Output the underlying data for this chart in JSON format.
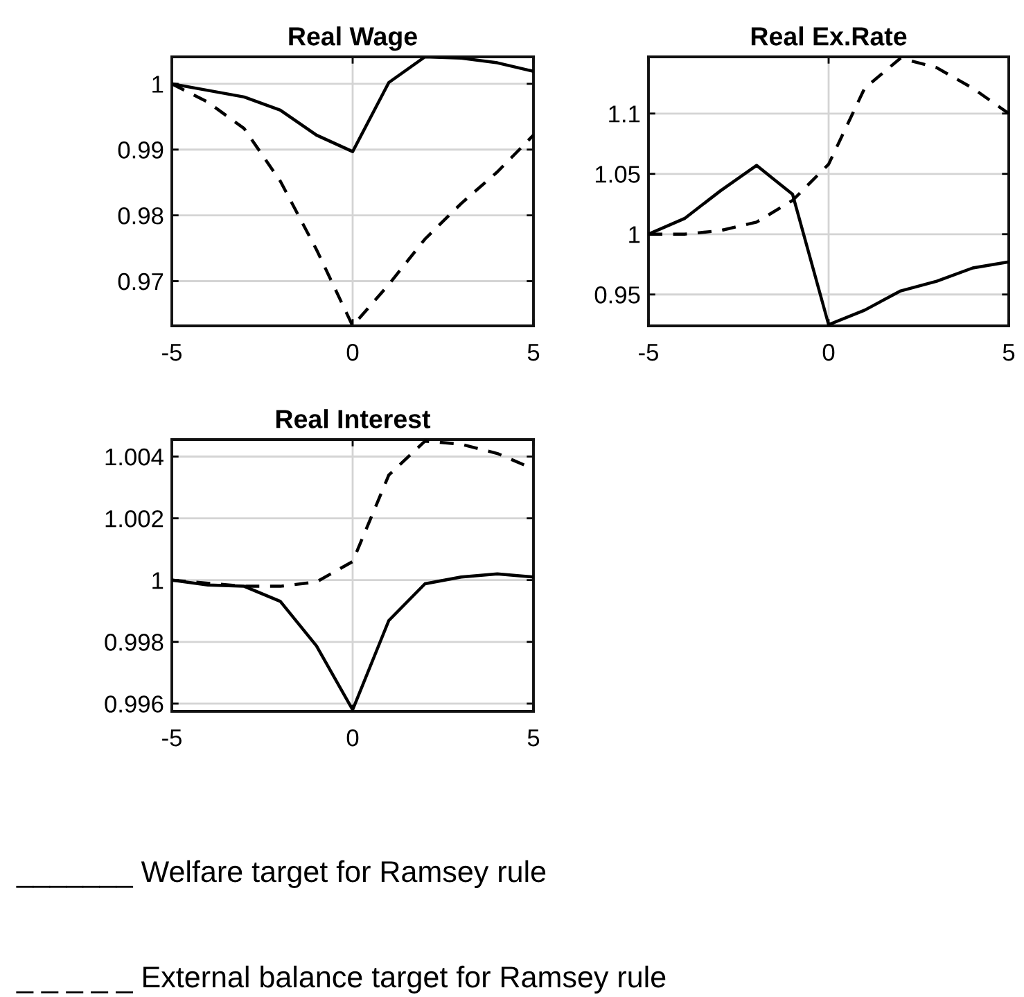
{
  "chart_data": [
    {
      "type": "line",
      "title": "Real Wage",
      "x": [
        -5,
        -4,
        -3,
        -2,
        -1,
        0,
        1,
        2,
        3,
        4,
        5
      ],
      "xlim": [
        -5,
        5
      ],
      "xticks": [
        -5,
        0,
        5
      ],
      "ylim": [
        0.9632,
        1.0041
      ],
      "yticks": [
        0.97,
        0.98,
        0.99,
        1
      ],
      "grid": true,
      "series": [
        {
          "color": "#000000",
          "line_style": "solid",
          "values": [
            1.0,
            0.999,
            0.998,
            0.996,
            0.9922,
            0.9897,
            1.0002,
            1.0041,
            1.0039,
            1.0032,
            1.0019
          ]
        },
        {
          "color": "#000000",
          "line_style": "dashed",
          "values": [
            1.0,
            0.9972,
            0.9932,
            0.9852,
            0.9748,
            0.9632,
            0.9695,
            0.9764,
            0.9818,
            0.9866,
            0.9922
          ]
        }
      ]
    },
    {
      "type": "line",
      "title": "Real Ex.Rate",
      "x": [
        -5,
        -4,
        -3,
        -2,
        -1,
        0,
        1,
        2,
        3,
        4,
        5
      ],
      "xlim": [
        -5,
        5
      ],
      "xticks": [
        -5,
        0,
        5
      ],
      "ylim": [
        0.924,
        1.147
      ],
      "yticks": [
        0.95,
        1,
        1.05,
        1.1
      ],
      "grid": true,
      "series": [
        {
          "color": "#000000",
          "line_style": "solid",
          "values": [
            1.0,
            1.013,
            1.036,
            1.057,
            1.033,
            0.925,
            0.937,
            0.953,
            0.961,
            0.972,
            0.977
          ]
        },
        {
          "color": "#000000",
          "line_style": "dashed",
          "values": [
            1.0,
            1.0,
            1.003,
            1.01,
            1.028,
            1.058,
            1.121,
            1.146,
            1.138,
            1.121,
            1.1
          ]
        }
      ]
    },
    {
      "type": "line",
      "title": "Real Interest",
      "x": [
        -5,
        -4,
        -3,
        -2,
        -1,
        0,
        1,
        2,
        3,
        4,
        5
      ],
      "xlim": [
        -5,
        5
      ],
      "xticks": [
        -5,
        0,
        5
      ],
      "ylim": [
        0.99575,
        1.00455
      ],
      "yticks": [
        0.996,
        0.998,
        1,
        1.002,
        1.004
      ],
      "grid": true,
      "series": [
        {
          "color": "#000000",
          "line_style": "solid",
          "values": [
            1.0,
            0.99984,
            0.9998,
            0.99931,
            0.99787,
            0.9958,
            0.99869,
            0.99988,
            1.0001,
            1.0002,
            1.0001
          ]
        },
        {
          "color": "#000000",
          "line_style": "dashed",
          "values": [
            1.0,
            0.9999,
            0.9998,
            0.9998,
            0.99994,
            1.0006,
            1.0034,
            1.0045,
            1.0044,
            1.0041,
            1.0036
          ]
        }
      ]
    },
    {
      "type": "other",
      "annotations": [
        "_______ Welfare target for Ramsey rule",
        "_ _ _ _ _ External balance target for Ramsey rule"
      ]
    }
  ]
}
